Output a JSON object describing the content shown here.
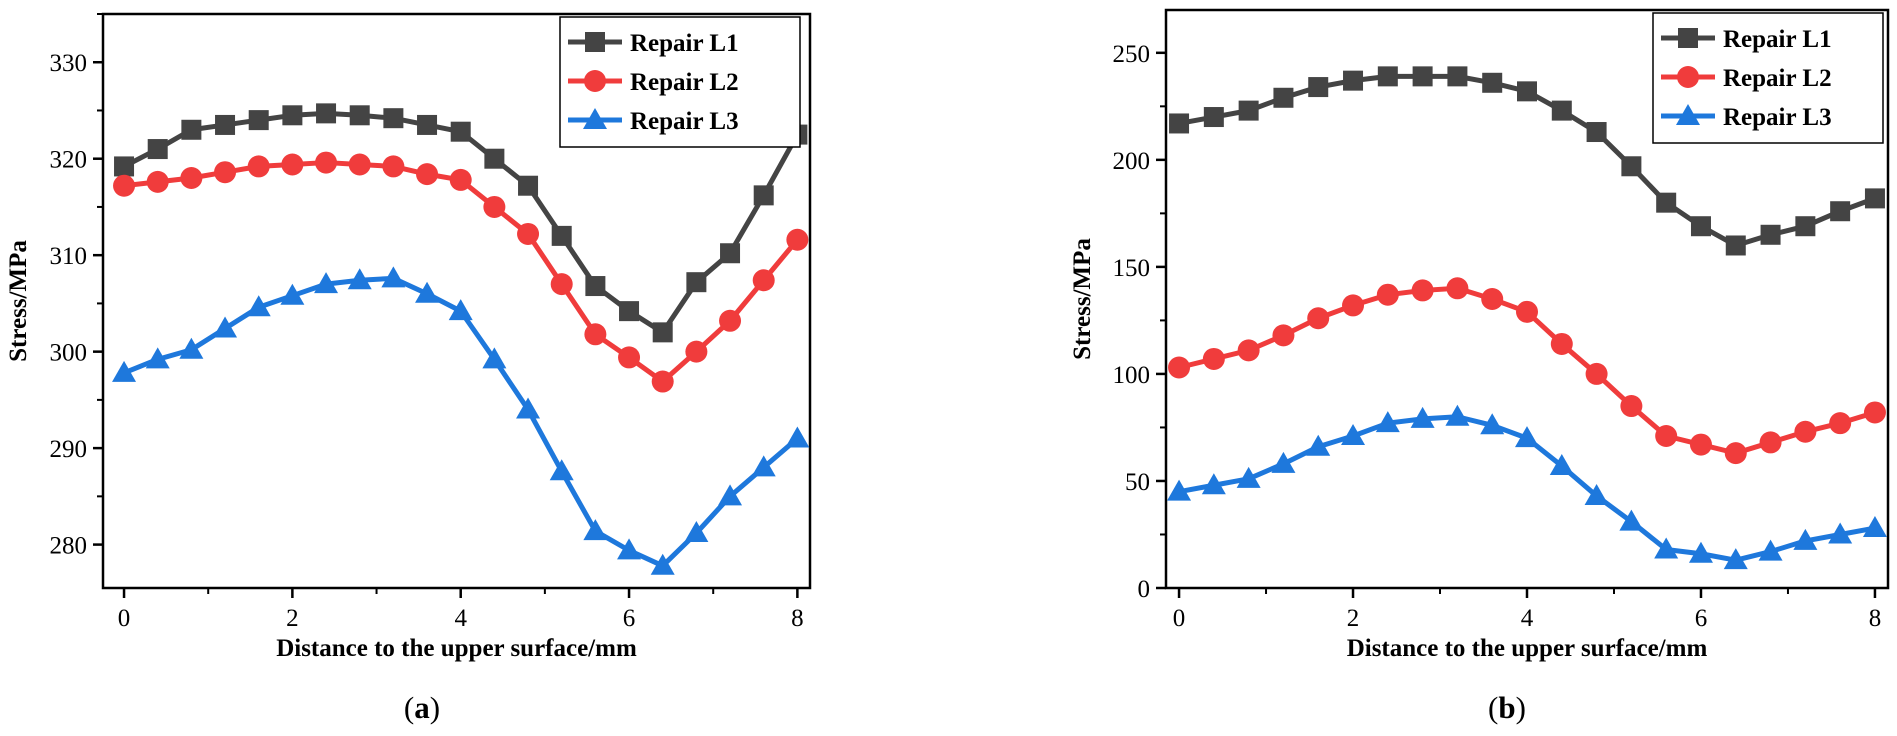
{
  "chart_data": [
    {
      "type": "line",
      "panel_label": "a",
      "xlabel": "Distance to the upper surface/mm",
      "ylabel": "Stress/MPa",
      "xlim": [
        -0.25,
        8.15
      ],
      "ylim": [
        275.5,
        335
      ],
      "xticks": [
        0,
        2,
        4,
        6,
        8
      ],
      "yticks": [
        280,
        290,
        300,
        310,
        320,
        330
      ],
      "legend_position": "top-right",
      "x": [
        0,
        0.4,
        0.8,
        1.2,
        1.6,
        2.0,
        2.4,
        2.8,
        3.2,
        3.6,
        4.0,
        4.4,
        4.8,
        5.2,
        5.6,
        6.0,
        6.4,
        6.8,
        7.2,
        7.6,
        8.0
      ],
      "series": [
        {
          "name": "Repair L1",
          "color": "#444444",
          "marker": "square",
          "values": [
            319.2,
            321.0,
            323.0,
            323.5,
            324.0,
            324.5,
            324.7,
            324.5,
            324.2,
            323.5,
            322.8,
            320.0,
            317.2,
            312.0,
            306.8,
            304.2,
            302.0,
            307.2,
            310.2,
            316.2,
            322.5
          ]
        },
        {
          "name": "Repair L2",
          "color": "#f03c3c",
          "marker": "circle",
          "values": [
            317.2,
            317.6,
            318.0,
            318.6,
            319.2,
            319.4,
            319.6,
            319.4,
            319.2,
            318.4,
            317.8,
            315.0,
            312.2,
            307.0,
            301.8,
            299.4,
            296.9,
            300.0,
            303.2,
            307.4,
            311.6
          ]
        },
        {
          "name": "Repair L3",
          "color": "#1e78dc",
          "marker": "triangle",
          "values": [
            297.8,
            299.2,
            300.2,
            302.4,
            304.6,
            305.8,
            307.0,
            307.4,
            307.6,
            306.0,
            304.2,
            299.2,
            294.0,
            287.6,
            281.4,
            279.4,
            277.8,
            281.2,
            285.0,
            288.0,
            291.0
          ]
        }
      ]
    },
    {
      "type": "line",
      "panel_label": "b",
      "xlabel": "Distance to the upper surface/mm",
      "ylabel": "Stress/MPa",
      "xlim": [
        -0.15,
        8.15
      ],
      "ylim": [
        0,
        270
      ],
      "xticks": [
        0,
        2,
        4,
        6,
        8
      ],
      "yticks": [
        0,
        50,
        100,
        150,
        200,
        250
      ],
      "legend_position": "top-right",
      "x": [
        0,
        0.4,
        0.8,
        1.2,
        1.6,
        2.0,
        2.4,
        2.8,
        3.2,
        3.6,
        4.0,
        4.4,
        4.8,
        5.2,
        5.6,
        6.0,
        6.4,
        6.8,
        7.2,
        7.6,
        8.0
      ],
      "series": [
        {
          "name": "Repair L1",
          "color": "#444444",
          "marker": "square",
          "values": [
            217,
            220,
            223,
            229,
            234,
            237,
            239,
            239,
            239,
            236,
            232,
            223,
            213,
            197,
            180,
            169,
            160,
            165,
            169,
            176,
            182
          ]
        },
        {
          "name": "Repair L2",
          "color": "#f03c3c",
          "marker": "circle",
          "values": [
            103,
            107,
            111,
            118,
            126,
            132,
            137,
            139,
            140,
            135,
            129,
            114,
            100,
            85,
            71,
            67,
            63,
            68,
            73,
            77,
            82
          ]
        },
        {
          "name": "Repair L3",
          "color": "#1e78dc",
          "marker": "triangle",
          "values": [
            45,
            48,
            51,
            58,
            66,
            71,
            77,
            79,
            80,
            76,
            70,
            57,
            43,
            31,
            18,
            16,
            13,
            17,
            22,
            25,
            28
          ]
        }
      ]
    }
  ]
}
